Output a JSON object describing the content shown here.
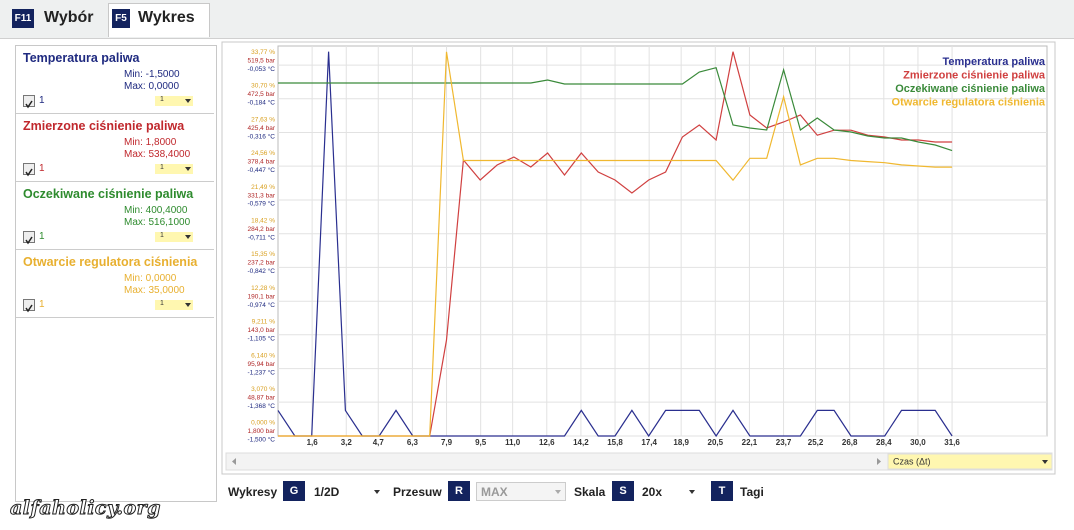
{
  "tabs": [
    {
      "key": "F11",
      "label": "Wybór"
    },
    {
      "key": "F5",
      "label": "Wykres"
    }
  ],
  "sensors": [
    {
      "title": "Temperatura paliwa",
      "min": "Min: -1,5000",
      "max": "Max: 0,0000",
      "check_label": "1",
      "select": "1",
      "color": "#1f2a80"
    },
    {
      "title": "Zmierzone ciśnienie paliwa",
      "min": "Min: 1,8000",
      "max": "Max: 538,4000",
      "check_label": "1",
      "select": "1",
      "color": "#c0282d"
    },
    {
      "title": "Oczekiwane ciśnienie paliwa",
      "min": "Min: 400,4000",
      "max": "Max: 516,1000",
      "check_label": "1",
      "select": "1",
      "color": "#2e8b2e"
    },
    {
      "title": "Otwarcie regulatora ciśnienia",
      "min": "Min: 0,0000",
      "max": "Max: 35,0000",
      "check_label": "1",
      "select": "1",
      "color": "#e8b030"
    }
  ],
  "chart_data": {
    "type": "line",
    "xlabel": "Czas (Δt)",
    "grid": true,
    "legend": "upper right",
    "x": [
      0,
      0.79,
      1.58,
      2.37,
      3.16,
      3.95,
      4.74,
      5.53,
      6.32,
      7.11,
      7.9,
      8.69,
      9.48,
      10.27,
      11.06,
      11.85,
      12.64,
      13.43,
      14.22,
      15.01,
      15.8,
      16.59,
      17.38,
      18.17,
      18.96,
      19.75,
      20.54,
      21.33,
      22.12,
      22.91,
      23.7,
      24.49,
      25.28,
      26.07,
      26.86,
      27.65,
      28.44,
      29.23,
      30.02,
      30.81,
      31.6
    ],
    "xlim": [
      0,
      36.05
    ],
    "xticks": [
      {
        "value": 1.6,
        "label": "1,6"
      },
      {
        "value": 3.2,
        "label": "3,2"
      },
      {
        "value": 4.7,
        "label": "4,7"
      },
      {
        "value": 6.3,
        "label": "6,3"
      },
      {
        "value": 7.9,
        "label": "7,9"
      },
      {
        "value": 9.5,
        "label": "9,5"
      },
      {
        "value": 11.0,
        "label": "11,0"
      },
      {
        "value": 12.6,
        "label": "12,6"
      },
      {
        "value": 14.2,
        "label": "14,2"
      },
      {
        "value": 15.8,
        "label": "15,8"
      },
      {
        "value": 17.4,
        "label": "17,4"
      },
      {
        "value": 18.9,
        "label": "18,9"
      },
      {
        "value": 20.5,
        "label": "20,5"
      },
      {
        "value": 22.1,
        "label": "22,1"
      },
      {
        "value": 23.7,
        "label": "23,7"
      },
      {
        "value": 25.2,
        "label": "25,2"
      },
      {
        "value": 26.8,
        "label": "26,8"
      },
      {
        "value": 28.4,
        "label": "28,4"
      },
      {
        "value": 30.0,
        "label": "30,0"
      },
      {
        "value": 31.6,
        "label": "31,6"
      }
    ],
    "ylim": [
      -1.5,
      0.0217
    ],
    "ytick_color": "#1f2a80",
    "yticks": [
      {
        "value": -1.5,
        "label": "-1,500 °C"
      },
      {
        "value": -1.368,
        "label": "-1,368 °C"
      },
      {
        "value": -1.237,
        "label": "-1,237 °C"
      },
      {
        "value": -1.105,
        "label": "-1,105 °C"
      },
      {
        "value": -0.974,
        "label": "-0,974 °C"
      },
      {
        "value": -0.842,
        "label": "-0,842 °C"
      },
      {
        "value": -0.711,
        "label": "-0,711 °C"
      },
      {
        "value": -0.579,
        "label": "-0,579 °C"
      },
      {
        "value": -0.447,
        "label": "-0,447 °C"
      },
      {
        "value": -0.316,
        "label": "-0,316 °C"
      },
      {
        "value": -0.184,
        "label": "-0,184 °C"
      },
      {
        "value": -0.053,
        "label": "-0,053 °C"
      }
    ],
    "y2lim": [
      1.8,
      546.4
    ],
    "y2tick_color": "#b02828",
    "y2ticks": [
      {
        "value": 1.8,
        "label": "1,800 bar"
      },
      {
        "value": 48.87,
        "label": "48,87 bar"
      },
      {
        "value": 95.94,
        "label": "95,94 bar"
      },
      {
        "value": 143.0,
        "label": "143,0 bar"
      },
      {
        "value": 190.1,
        "label": "190,1 bar"
      },
      {
        "value": 237.2,
        "label": "237,2 bar"
      },
      {
        "value": 284.2,
        "label": "284,2 bar"
      },
      {
        "value": 331.3,
        "label": "331,3 bar"
      },
      {
        "value": 378.4,
        "label": "378,4 bar"
      },
      {
        "value": 425.4,
        "label": "425,4 bar"
      },
      {
        "value": 472.5,
        "label": "472,5 bar"
      },
      {
        "value": 519.5,
        "label": "519,5 bar"
      }
    ],
    "y3lim": [
      0,
      35.53
    ],
    "y3tick_color": "#d9a020",
    "y3ticks": [
      {
        "value": 0,
        "label": "0,000 %"
      },
      {
        "value": 3.07,
        "label": "3,070 %"
      },
      {
        "value": 6.14,
        "label": "6,140 %"
      },
      {
        "value": 9.211,
        "label": "9,211 %"
      },
      {
        "value": 12.28,
        "label": "12,28 %"
      },
      {
        "value": 15.35,
        "label": "15,35 %"
      },
      {
        "value": 18.42,
        "label": "18,42 %"
      },
      {
        "value": 21.49,
        "label": "21,49 %"
      },
      {
        "value": 24.56,
        "label": "24,56 %"
      },
      {
        "value": 27.63,
        "label": "27,63 %"
      },
      {
        "value": 30.7,
        "label": "30,70 %"
      },
      {
        "value": 33.77,
        "label": "33,77 %"
      }
    ],
    "series": [
      {
        "name": "Temperatura paliwa",
        "color": "#2a2f8f",
        "values": [
          -1.4,
          -1.5,
          -1.5,
          0,
          -1.4,
          -1.5,
          -1.5,
          -1.4,
          -1.5,
          -1.5,
          -1.5,
          -1.5,
          -1.5,
          -1.5,
          -1.5,
          -1.5,
          -1.5,
          -1.5,
          -1.4,
          -1.5,
          -1.5,
          -1.4,
          -1.5,
          -1.4,
          -1.4,
          -1.4,
          -1.5,
          -1.4,
          -1.5,
          -1.5,
          -1.5,
          -1.5,
          -1.4,
          -1.4,
          -1.5,
          -1.5,
          -1.5,
          -1.4,
          -1.4,
          -1.4,
          -1.5
        ]
      },
      {
        "name": "Zmierzone ciśnienie paliwa",
        "color": "#d04040",
        "axis": "y2",
        "values": [
          1.8,
          1.8,
          1.8,
          1.8,
          1.8,
          1.8,
          1.8,
          1.8,
          1.8,
          1.8,
          135.9,
          387.2,
          359.3,
          380.2,
          391.4,
          377.4,
          397.0,
          366.3,
          397.0,
          370.4,
          359.3,
          341.1,
          359.3,
          370.4,
          419.3,
          436.1,
          415.1,
          538.4,
          450.1,
          431.9,
          440.3,
          450.1,
          421.8,
          428.8,
          428.8,
          421.8,
          419.3,
          415.1,
          415.1,
          412.3,
          412.3
        ]
      },
      {
        "name": "Oczekiwane ciśnienie paliwa",
        "color": "#3a8a3a",
        "axis": "y2",
        "values": [
          494.8,
          494.8,
          494.8,
          494.8,
          494.8,
          494.8,
          494.8,
          494.8,
          494.8,
          494.8,
          494.8,
          494.8,
          494.8,
          494.8,
          494.8,
          494.8,
          498.9,
          493.4,
          493.4,
          493.4,
          493.4,
          493.4,
          493.4,
          493.4,
          493.4,
          510.1,
          516.1,
          436.1,
          431.9,
          429.1,
          513.1,
          429.1,
          445.9,
          429.1,
          426.3,
          420.7,
          418.0,
          418.0,
          412.3,
          408.2,
          400.4
        ]
      },
      {
        "name": "Otwarcie regulatora ciśnienia",
        "color": "#f0b830",
        "axis": "y3",
        "values": [
          0,
          0,
          0,
          0,
          0,
          0,
          0,
          0,
          0,
          0,
          35.0,
          25.1,
          25.1,
          25.1,
          25.1,
          25.1,
          25.1,
          25.1,
          25.1,
          25.1,
          25.1,
          25.1,
          25.1,
          25.1,
          25.1,
          25.1,
          25.1,
          23.3,
          25.3,
          25.3,
          30.9,
          24.7,
          25.3,
          25.3,
          25.1,
          25.0,
          24.9,
          24.7,
          24.6,
          24.5,
          24.5
        ]
      }
    ]
  },
  "toolbar": {
    "charts": {
      "label": "Wykresy",
      "key": "G",
      "value": "1/2D"
    },
    "shift": {
      "label": "Przesuw",
      "key": "R",
      "value": "MAX"
    },
    "scale": {
      "label": "Skala",
      "key": "S",
      "value": "20x"
    },
    "tags": {
      "key": "T",
      "label": "Tagi"
    }
  },
  "watermark": "alfaholicy.org"
}
